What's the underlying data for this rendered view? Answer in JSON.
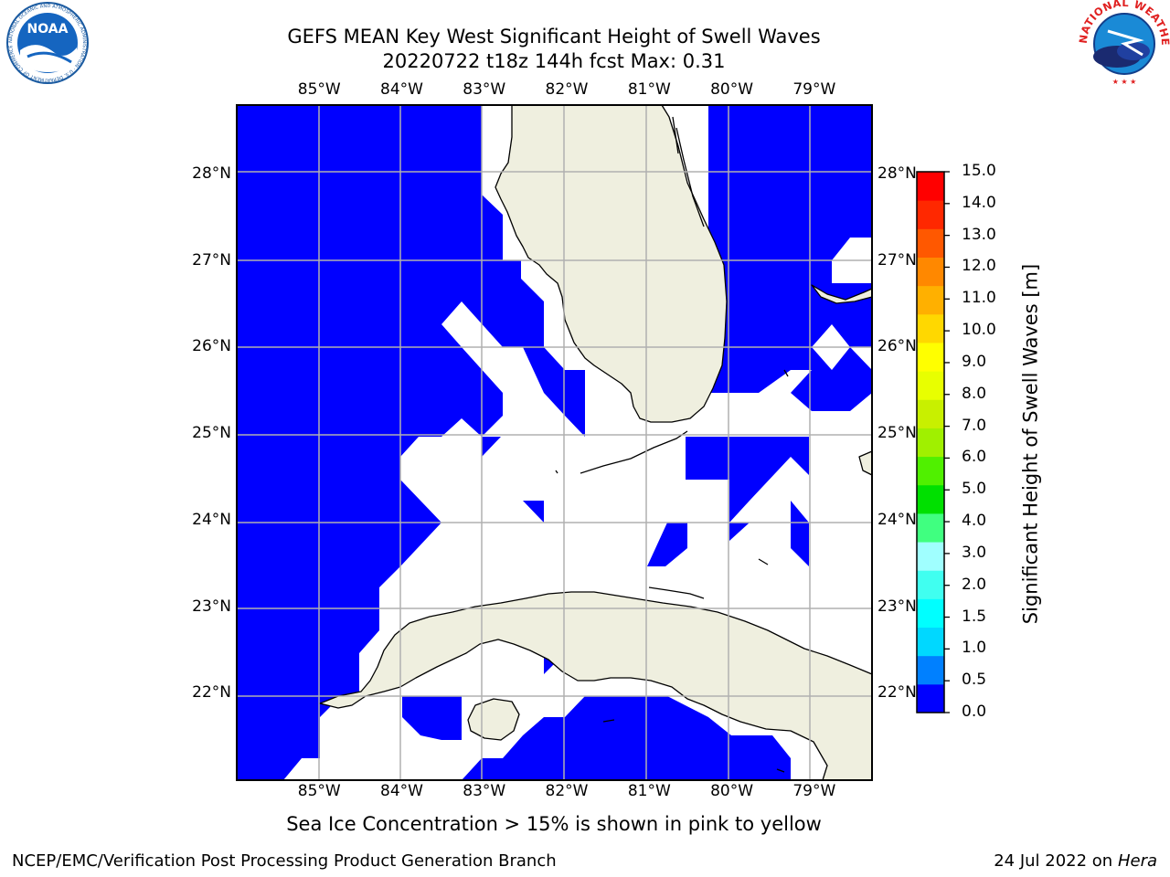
{
  "title": {
    "line1": "GEFS MEAN Key West Significant Height of Swell Waves",
    "line2": "20220722 t18z 144h fcst    Max: 0.31"
  },
  "logos": {
    "noaa_text": "NOAA",
    "noaa_ring": "NATIONAL OCEANIC AND ATMOSPHERIC ADMINISTRATION · U.S. DEPARTMENT OF COMMERCE",
    "nws_ring": "NATIONAL WEATHER SERVICE"
  },
  "axes": {
    "lon_ticks": [
      "85°W",
      "84°W",
      "83°W",
      "82°W",
      "81°W",
      "80°W",
      "79°W"
    ],
    "lon_values": [
      -85,
      -84,
      -83,
      -82,
      -81,
      -80,
      -79
    ],
    "lat_ticks": [
      "28°N",
      "27°N",
      "26°N",
      "25°N",
      "24°N",
      "23°N",
      "22°N"
    ],
    "lat_values": [
      28,
      27,
      26,
      25,
      24,
      23,
      22
    ],
    "lon_range": [
      -86.0,
      -78.3
    ],
    "lat_range": [
      21.0,
      28.8
    ],
    "grid": true
  },
  "colorbar": {
    "label": "Significant Height of Swell Waves [m]",
    "ticks": [
      "15.0",
      "14.0",
      "13.0",
      "12.0",
      "11.0",
      "10.0",
      "9.0",
      "8.0",
      "7.0",
      "6.0",
      "5.0",
      "4.0",
      "3.0",
      "2.0",
      "1.5",
      "1.0",
      "0.5",
      "0.0"
    ],
    "colors": [
      "#0000ff",
      "#0080ff",
      "#00d8ff",
      "#00ffff",
      "#40fff0",
      "#a0ffff",
      "#40ff80",
      "#00e000",
      "#50f000",
      "#a0f000",
      "#c8f000",
      "#e8ff00",
      "#ffff00",
      "#ffd800",
      "#ffb000",
      "#ff8800",
      "#ff5800",
      "#ff2800",
      "#ff0000"
    ]
  },
  "colors": {
    "ocean_fill": "#0000ff",
    "land_fill": "#efefdf",
    "grid_line": "#b0b0b0"
  },
  "ice_note": "Sea Ice Concentration > 15% is shown in pink to yellow",
  "footer": {
    "left": "NCEP/EMC/Verification Post Processing Product Generation Branch",
    "right_prefix": "24 Jul 2022 on ",
    "right_host": "Hera"
  }
}
